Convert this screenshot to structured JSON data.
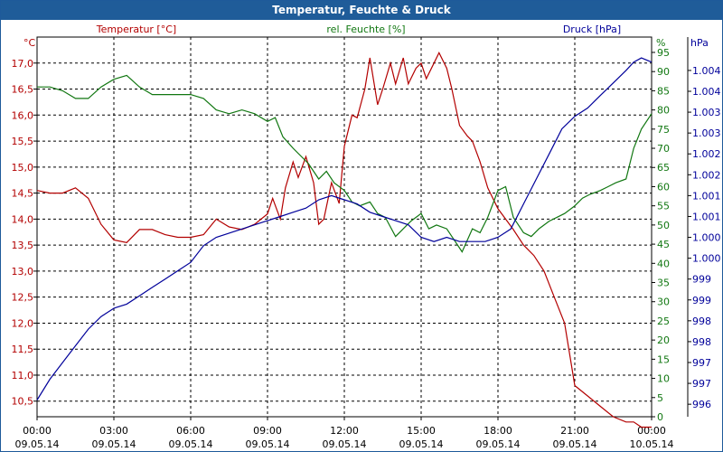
{
  "window": {
    "title": "Temperatur, Feuchte & Druck"
  },
  "chart_data": {
    "type": "line",
    "title": "Temperatur, Feuchte & Druck",
    "grid": true,
    "colors": {
      "temperature": "#b30000",
      "humidity": "#117711",
      "pressure": "#00009a",
      "grid": "#000000"
    },
    "x_ticks": [
      {
        "time": "00:00",
        "date": "09.05.14",
        "h": 0
      },
      {
        "time": "03:00",
        "date": "09.05.14",
        "h": 3
      },
      {
        "time": "06:00",
        "date": "09.05.14",
        "h": 6
      },
      {
        "time": "09:00",
        "date": "09.05.14",
        "h": 9
      },
      {
        "time": "12:00",
        "date": "09.05.14",
        "h": 12
      },
      {
        "time": "15:00",
        "date": "09.05.14",
        "h": 15
      },
      {
        "time": "18:00",
        "date": "09.05.14",
        "h": 18
      },
      {
        "time": "21:00",
        "date": "09.05.14",
        "h": 21
      },
      {
        "time": "00:00",
        "date": "10.05.14",
        "h": 24
      }
    ],
    "axes": {
      "left": {
        "unit": "°C",
        "label": "Temperatur [°C]",
        "ylim": [
          10.2,
          17.5
        ],
        "ticks": [
          "10,5",
          "11,0",
          "11,5",
          "12,0",
          "12,5",
          "13,0",
          "13,5",
          "14,0",
          "14,5",
          "15,0",
          "15,5",
          "16,0",
          "16,5",
          "17,0"
        ],
        "tick_values": [
          10.5,
          11.0,
          11.5,
          12.0,
          12.5,
          13.0,
          13.5,
          14.0,
          14.5,
          15.0,
          15.5,
          16.0,
          16.5,
          17.0
        ]
      },
      "right1": {
        "unit": "%",
        "label": "rel. Feuchte [%]",
        "ylim": [
          0,
          99
        ],
        "ticks": [
          "0",
          "5",
          "10",
          "15",
          "20",
          "25",
          "30",
          "35",
          "40",
          "45",
          "50",
          "55",
          "60",
          "65",
          "70",
          "75",
          "80",
          "85",
          "90",
          "95"
        ],
        "tick_values": [
          0,
          5,
          10,
          15,
          20,
          25,
          30,
          35,
          40,
          45,
          50,
          55,
          60,
          65,
          70,
          75,
          80,
          85,
          90,
          95
        ]
      },
      "right2": {
        "unit": "hPa",
        "label": "Druck [hPa]",
        "ylim": [
          995.7,
          1004.8
        ],
        "ticks": [
          "996",
          "997",
          "997",
          "998",
          "998",
          "999",
          "999",
          "1.000",
          "1.000",
          "1.001",
          "1.001",
          "1.002",
          "1.002",
          "1.003",
          "1.003",
          "1.004",
          "1.004"
        ],
        "tick_values": [
          996.0,
          996.5,
          997.0,
          997.5,
          998.0,
          998.5,
          999.0,
          999.5,
          1000.0,
          1000.5,
          1001.0,
          1001.5,
          1002.0,
          1002.5,
          1003.0,
          1003.5,
          1004.0
        ]
      }
    },
    "series": [
      {
        "name": "Temperatur [°C]",
        "axis": "left",
        "color": "#b30000",
        "x": [
          0,
          0.5,
          1.0,
          1.5,
          2.0,
          2.5,
          3.0,
          3.5,
          4.0,
          4.5,
          5.0,
          5.5,
          6.0,
          6.5,
          7.0,
          7.5,
          8.0,
          8.5,
          9.0,
          9.2,
          9.5,
          9.7,
          10.0,
          10.2,
          10.5,
          10.8,
          11.0,
          11.2,
          11.5,
          11.8,
          12.0,
          12.3,
          12.5,
          12.8,
          13.0,
          13.3,
          13.5,
          13.8,
          14.0,
          14.3,
          14.5,
          14.8,
          15.0,
          15.2,
          15.5,
          15.7,
          16.0,
          16.2,
          16.5,
          16.8,
          17.0,
          17.3,
          17.6,
          18.0,
          18.3,
          18.6,
          19.0,
          19.4,
          19.8,
          20.2,
          20.6,
          21.0,
          21.5,
          22.0,
          22.5,
          23.0,
          23.3,
          23.6,
          24.0
        ],
        "values": [
          14.55,
          14.5,
          14.5,
          14.6,
          14.4,
          13.9,
          13.6,
          13.55,
          13.8,
          13.8,
          13.7,
          13.65,
          13.65,
          13.7,
          14.0,
          13.85,
          13.8,
          13.9,
          14.1,
          14.4,
          14.0,
          14.6,
          15.1,
          14.8,
          15.2,
          14.7,
          13.9,
          14.0,
          14.7,
          14.3,
          15.4,
          16.0,
          15.95,
          16.5,
          17.1,
          16.2,
          16.5,
          17.0,
          16.6,
          17.1,
          16.6,
          16.9,
          17.0,
          16.7,
          17.0,
          17.2,
          16.9,
          16.5,
          15.8,
          15.6,
          15.5,
          15.1,
          14.6,
          14.2,
          14.0,
          13.8,
          13.5,
          13.3,
          13.0,
          12.5,
          12.0,
          10.8,
          10.6,
          10.4,
          10.2,
          10.1,
          10.1,
          10.0,
          10.0
        ]
      },
      {
        "name": "rel. Feuchte [%]",
        "axis": "right1",
        "color": "#117711",
        "x": [
          0,
          0.5,
          1.0,
          1.5,
          2.0,
          2.5,
          3.0,
          3.5,
          4.0,
          4.5,
          5.0,
          5.5,
          6.0,
          6.5,
          7.0,
          7.5,
          8.0,
          8.5,
          9.0,
          9.3,
          9.6,
          10.0,
          10.3,
          10.6,
          11.0,
          11.3,
          11.6,
          12.0,
          12.3,
          12.6,
          13.0,
          13.3,
          13.6,
          14.0,
          14.3,
          14.6,
          15.0,
          15.3,
          15.6,
          16.0,
          16.3,
          16.6,
          17.0,
          17.3,
          17.6,
          18.0,
          18.3,
          18.6,
          19.0,
          19.3,
          19.6,
          20.0,
          20.3,
          20.6,
          21.0,
          21.3,
          21.6,
          22.0,
          22.3,
          22.6,
          23.0,
          23.3,
          23.6,
          24.0
        ],
        "values": [
          86,
          86,
          85,
          83,
          83,
          86,
          88,
          89,
          86,
          84,
          84,
          84,
          84,
          83,
          80,
          79,
          80,
          79,
          77,
          78,
          73,
          70,
          68,
          66,
          62,
          64,
          61,
          59,
          56,
          55,
          56,
          53,
          52,
          47,
          49,
          51,
          53,
          49,
          50,
          49,
          46,
          43,
          49,
          48,
          52,
          59,
          60,
          52,
          48,
          47,
          49,
          51,
          52,
          53,
          55,
          57,
          58,
          59,
          60,
          61,
          62,
          70,
          75,
          79
        ]
      },
      {
        "name": "Druck [hPa]",
        "axis": "right2",
        "color": "#00009a",
        "x": [
          0,
          0.5,
          1.0,
          1.5,
          2.0,
          2.5,
          3.0,
          3.5,
          4.0,
          4.5,
          5.0,
          5.5,
          6.0,
          6.5,
          7.0,
          7.5,
          8.0,
          8.5,
          9.0,
          9.5,
          10.0,
          10.5,
          11.0,
          11.5,
          12.0,
          12.5,
          13.0,
          13.5,
          14.0,
          14.5,
          15.0,
          15.5,
          16.0,
          16.5,
          17.0,
          17.5,
          18.0,
          18.5,
          19.0,
          19.5,
          20.0,
          20.5,
          21.0,
          21.5,
          22.0,
          22.5,
          23.0,
          23.3,
          23.6,
          24.0
        ],
        "values": [
          996.1,
          996.6,
          997.0,
          997.4,
          997.8,
          998.1,
          998.3,
          998.4,
          998.6,
          998.8,
          999.0,
          999.2,
          999.4,
          999.8,
          1000.0,
          1000.1,
          1000.2,
          1000.3,
          1000.4,
          1000.5,
          1000.6,
          1000.7,
          1000.9,
          1001.0,
          1000.9,
          1000.8,
          1000.6,
          1000.5,
          1000.4,
          1000.3,
          1000.0,
          999.9,
          1000.0,
          999.9,
          999.9,
          999.9,
          1000.0,
          1000.2,
          1000.8,
          1001.4,
          1002.0,
          1002.6,
          1002.9,
          1003.1,
          1003.4,
          1003.7,
          1004.0,
          1004.2,
          1004.3,
          1004.2
        ]
      }
    ]
  }
}
